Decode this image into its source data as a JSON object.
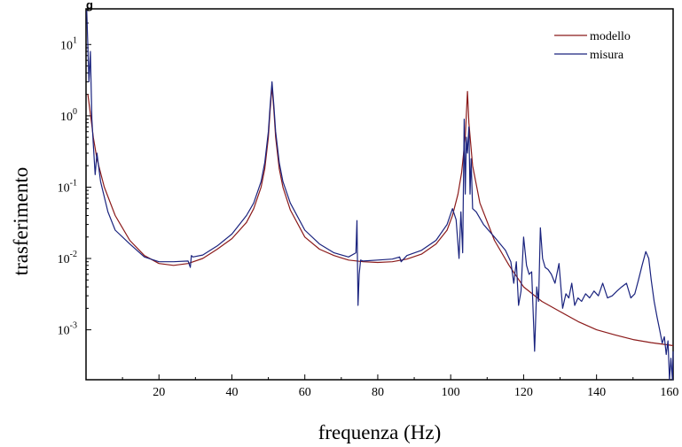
{
  "chart_data": {
    "type": "line",
    "partial_title": "g",
    "xlabel": "frequenza (Hz)",
    "ylabel": "trasferimento",
    "xlim": [
      0,
      161
    ],
    "ylim_log10": [
      -3.7,
      1.5
    ],
    "y_scale": "log",
    "x_ticks": [
      20,
      40,
      60,
      80,
      100,
      120,
      140,
      160
    ],
    "y_ticks": [
      {
        "base": "10",
        "exp": "1"
      },
      {
        "base": "10",
        "exp": "0"
      },
      {
        "base": "10",
        "exp": "-1"
      },
      {
        "base": "10",
        "exp": "-2"
      },
      {
        "base": "10",
        "exp": "-3"
      }
    ],
    "legend_position": "top-right",
    "series": [
      {
        "name": "modello",
        "color": "#8b1a1a",
        "x": [
          0.5,
          1.5,
          2,
          3,
          5,
          8,
          12,
          16,
          20,
          24,
          28,
          32,
          36,
          40,
          44,
          46,
          48,
          49,
          50,
          50.5,
          51,
          51.5,
          52,
          53,
          54,
          56,
          60,
          64,
          68,
          72,
          76,
          80,
          84,
          88,
          92,
          96,
          99,
          100.5,
          102,
          103,
          104,
          104.6,
          105,
          106,
          108,
          112,
          116,
          120,
          125,
          130,
          135,
          140,
          145,
          150,
          155,
          160,
          161
        ],
        "y": [
          2.0,
          0.8,
          0.5,
          0.25,
          0.1,
          0.04,
          0.018,
          0.011,
          0.0085,
          0.008,
          0.0085,
          0.01,
          0.0135,
          0.019,
          0.032,
          0.05,
          0.1,
          0.18,
          0.5,
          1.2,
          2.6,
          1.2,
          0.5,
          0.18,
          0.1,
          0.048,
          0.02,
          0.0135,
          0.011,
          0.0095,
          0.009,
          0.0088,
          0.009,
          0.0098,
          0.0115,
          0.016,
          0.025,
          0.04,
          0.08,
          0.16,
          0.5,
          2.2,
          0.8,
          0.2,
          0.06,
          0.018,
          0.008,
          0.004,
          0.0025,
          0.0018,
          0.0013,
          0.001,
          0.00085,
          0.00073,
          0.00066,
          0.00061,
          0.0006
        ]
      },
      {
        "name": "misura",
        "color": "#1a237e",
        "x": [
          0.2,
          0.8,
          1.2,
          1.6,
          2,
          2.5,
          3,
          4,
          6,
          8,
          12,
          16,
          20,
          24,
          28,
          28.6,
          28.9,
          29.3,
          32,
          36,
          40,
          44,
          46,
          48,
          49,
          50,
          50.5,
          51,
          51.5,
          52,
          53,
          54,
          56,
          60,
          64,
          68,
          72,
          74,
          74.3,
          74.6,
          74.9,
          75.3,
          76,
          80,
          84,
          86,
          86.4,
          88,
          92,
          96,
          99,
          100.5,
          101.5,
          102.3,
          102.8,
          103.3,
          103.7,
          104,
          104.3,
          104.6,
          105,
          105.3,
          105.6,
          106,
          107,
          109,
          112,
          115,
          116.5,
          117.3,
          118,
          118.6,
          119.3,
          120,
          120.8,
          121.5,
          122.2,
          123,
          123.6,
          124.1,
          124.6,
          125.2,
          125.9,
          126.7,
          127.6,
          128.6,
          129.7,
          130.7,
          131.6,
          132.4,
          133.2,
          134,
          134.9,
          135.9,
          137,
          138.1,
          139.3,
          140.5,
          141.7,
          143,
          144.3,
          145.6,
          146.9,
          148.2,
          149.4,
          150.5,
          151.5,
          152.5,
          153.5,
          154.3,
          155,
          155.8,
          156.6,
          157.3,
          158,
          158.6,
          159.1,
          159.6,
          160,
          160.4,
          160.8,
          161
        ],
        "y": [
          30,
          3,
          8,
          0.9,
          0.4,
          0.15,
          0.3,
          0.12,
          0.045,
          0.025,
          0.016,
          0.0105,
          0.009,
          0.009,
          0.0092,
          0.0075,
          0.011,
          0.0105,
          0.0112,
          0.015,
          0.022,
          0.04,
          0.06,
          0.12,
          0.22,
          0.6,
          1.4,
          3.0,
          1.4,
          0.6,
          0.22,
          0.12,
          0.06,
          0.025,
          0.016,
          0.012,
          0.0105,
          0.012,
          0.034,
          0.0022,
          0.006,
          0.0095,
          0.0092,
          0.0095,
          0.0098,
          0.0105,
          0.009,
          0.011,
          0.013,
          0.018,
          0.03,
          0.05,
          0.035,
          0.01,
          0.045,
          0.012,
          0.9,
          0.08,
          0.5,
          0.3,
          0.7,
          0.08,
          0.25,
          0.05,
          0.045,
          0.03,
          0.02,
          0.013,
          0.009,
          0.0045,
          0.009,
          0.0022,
          0.0035,
          0.02,
          0.008,
          0.006,
          0.0065,
          0.0005,
          0.004,
          0.0025,
          0.027,
          0.01,
          0.0075,
          0.007,
          0.006,
          0.0045,
          0.0085,
          0.002,
          0.0032,
          0.0028,
          0.0045,
          0.0022,
          0.0028,
          0.0025,
          0.0032,
          0.0028,
          0.0035,
          0.003,
          0.0045,
          0.0028,
          0.003,
          0.0035,
          0.004,
          0.0045,
          0.0028,
          0.0032,
          0.005,
          0.008,
          0.0125,
          0.01,
          0.005,
          0.0025,
          0.0015,
          0.001,
          0.00065,
          0.0008,
          0.00045,
          0.0007,
          0.0002,
          0.0004,
          0.0002,
          0.0005
        ]
      }
    ]
  }
}
